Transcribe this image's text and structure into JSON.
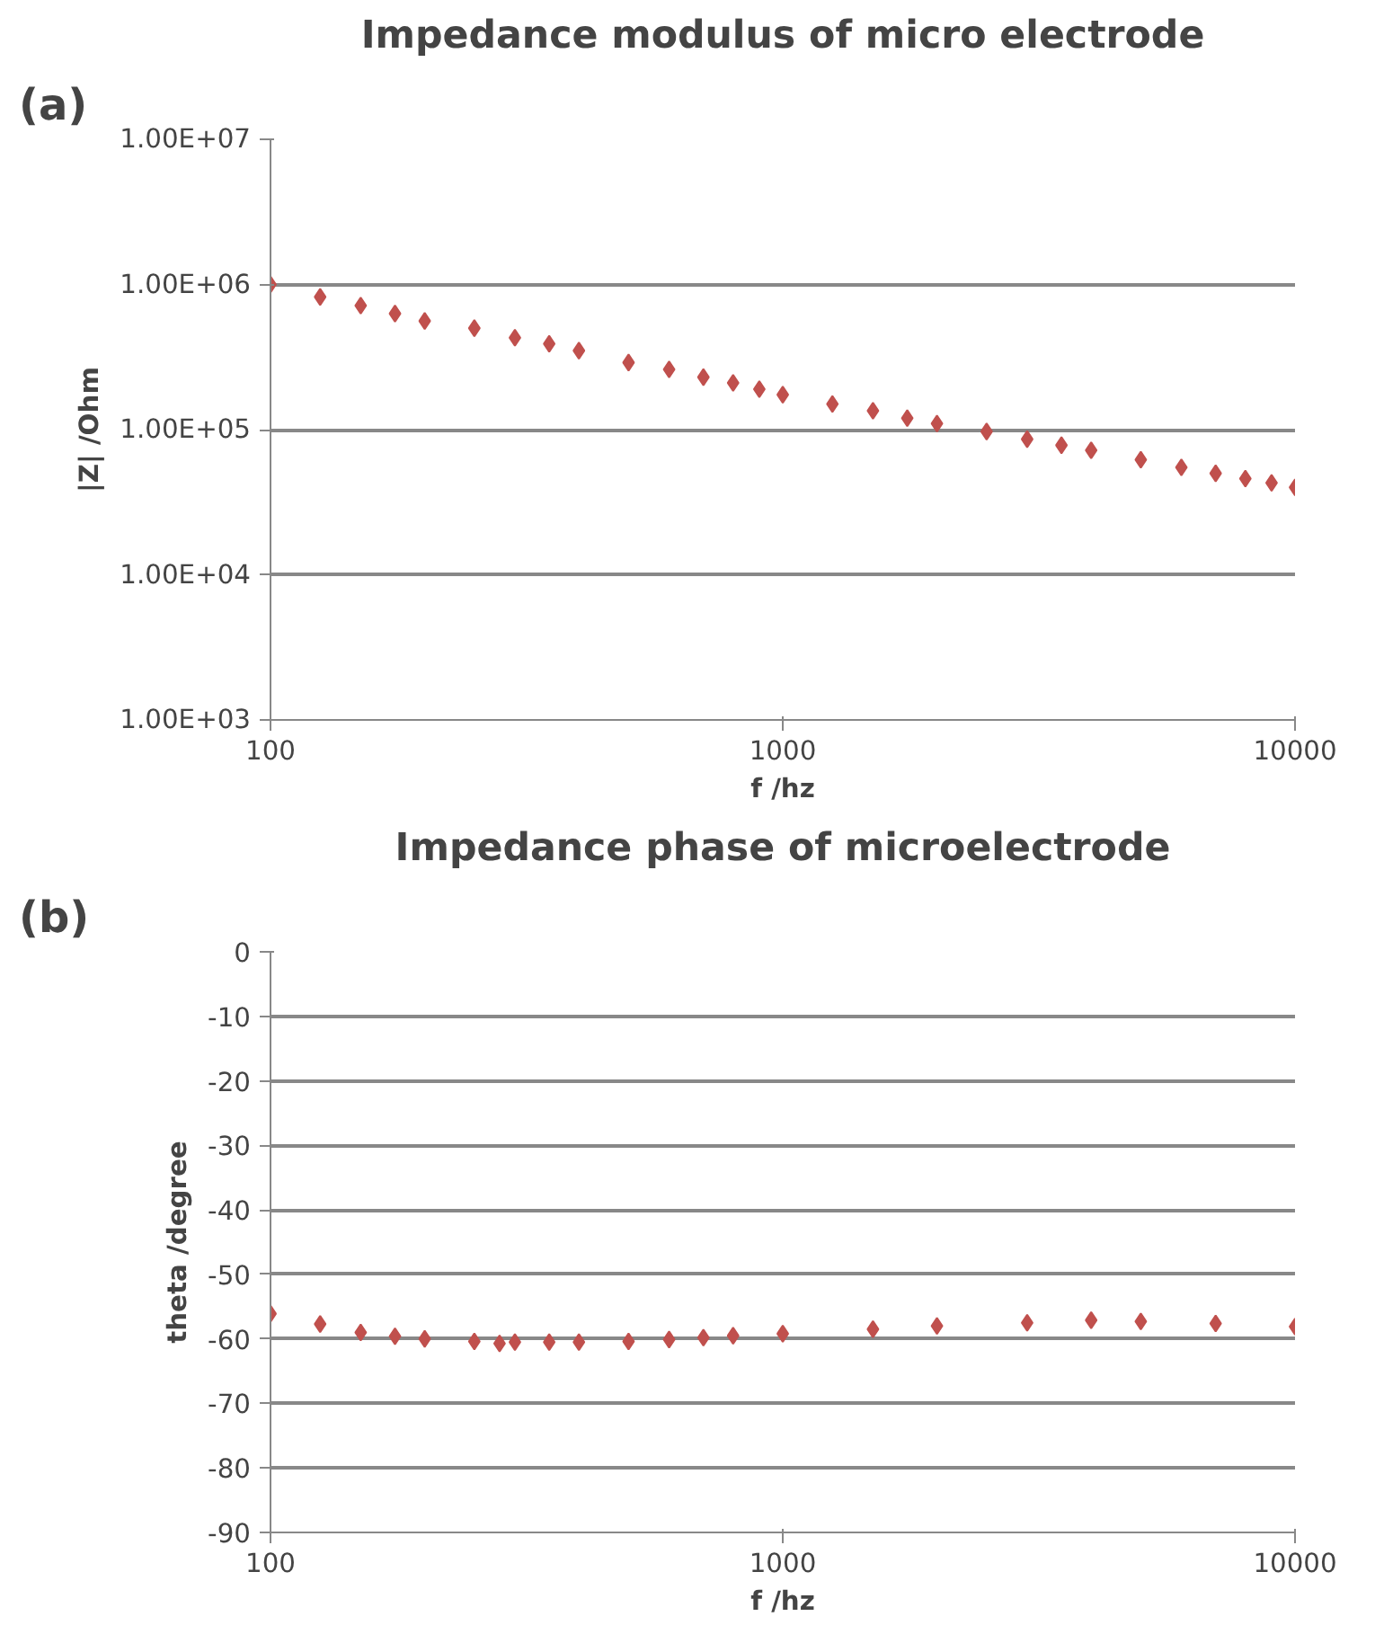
{
  "chart_data": [
    {
      "type": "scatter",
      "title": "Impedance modulus of micro electrode",
      "xlabel": "f /hz",
      "ylabel": "|Z| /Ohm",
      "annotations": [
        "(a)"
      ],
      "log": "xy",
      "marker": "diamond",
      "grid": "y",
      "xlim": [
        100,
        10000
      ],
      "xticks": [
        100,
        1000,
        10000
      ],
      "ylim": [
        1000,
        10000000
      ],
      "yticks": [
        {
          "value": 1000,
          "label": "1.00E+03"
        },
        {
          "value": 10000,
          "label": "1.00E+04"
        },
        {
          "value": 100000,
          "label": "1.00E+05"
        },
        {
          "value": 1000000,
          "label": "1.00E+06"
        },
        {
          "value": 10000000,
          "label": "1.00E+07"
        }
      ],
      "x": [
        100,
        125,
        150,
        175,
        200,
        250,
        300,
        350,
        400,
        500,
        600,
        700,
        800,
        900,
        1000,
        1250,
        1500,
        1750,
        2000,
        2500,
        3000,
        3500,
        4000,
        5000,
        6000,
        7000,
        8000,
        9000,
        10000
      ],
      "series": [
        {
          "color": "#c0504d",
          "values": [
            1000000,
            820000,
            715000,
            630000,
            560000,
            500000,
            430000,
            390000,
            350000,
            290000,
            260000,
            230000,
            210000,
            190000,
            174000,
            150000,
            135000,
            120000,
            110000,
            97000,
            86000,
            78000,
            72000,
            62000,
            55000,
            50000,
            46000,
            43000,
            40000
          ]
        }
      ]
    },
    {
      "type": "scatter",
      "title": "Impedance phase of microelectrode",
      "xlabel": "f /hz",
      "ylabel": "theta /degree",
      "annotations": [
        "(b)"
      ],
      "log": "x",
      "marker": "diamond",
      "grid": "y",
      "xlim": [
        100,
        10000
      ],
      "xticks": [
        100,
        1000,
        10000
      ],
      "ylim": [
        -90,
        0
      ],
      "yticks": [
        -90,
        -80,
        -70,
        -60,
        -50,
        -40,
        -30,
        -20,
        -10,
        0
      ],
      "x": [
        100,
        125,
        150,
        175,
        200,
        250,
        280,
        300,
        350,
        400,
        500,
        600,
        700,
        800,
        1000,
        1500,
        2000,
        3000,
        4000,
        5000,
        7000,
        10000
      ],
      "series": [
        {
          "color": "#c0504d",
          "values": [
            -56.1,
            -57.7,
            -59,
            -59.6,
            -60,
            -60.4,
            -60.7,
            -60.5,
            -60.5,
            -60.5,
            -60.4,
            -60.1,
            -59.8,
            -59.5,
            -59.2,
            -58.5,
            -58,
            -57.5,
            -57.1,
            -57.3,
            -57.6,
            -58.1
          ]
        }
      ]
    }
  ]
}
